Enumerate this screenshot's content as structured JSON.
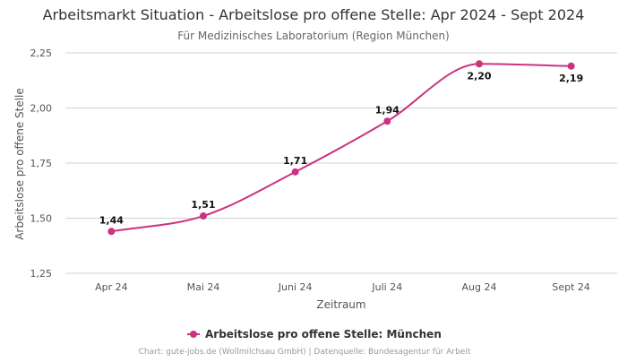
{
  "chart_data": {
    "type": "line",
    "title": "Arbeitsmarkt Situation - Arbeitslose pro offene Stelle: Apr 2024 - Sept 2024",
    "subtitle": "Für Medizinisches Laboratorium (Region München)",
    "xlabel": "Zeitraum",
    "ylabel": "Arbeitslose pro offene Stelle",
    "categories": [
      "Apr 24",
      "Mai 24",
      "Juni 24",
      "Juli 24",
      "Aug 24",
      "Sept 24"
    ],
    "series": [
      {
        "name": "Arbeitslose pro offene Stelle: München",
        "values": [
          1.44,
          1.51,
          1.71,
          1.94,
          2.2,
          2.19
        ],
        "labels": [
          "1,44",
          "1,51",
          "1,71",
          "1,94",
          "2,20",
          "2,19"
        ],
        "color": "#cc3380"
      }
    ],
    "ylim": [
      1.25,
      2.25
    ],
    "yticks": [
      1.25,
      1.5,
      1.75,
      2.0,
      2.25
    ],
    "ytick_labels": [
      "1,25",
      "1,50",
      "1,75",
      "2,00",
      "2,25"
    ],
    "grid": "horizontal",
    "legend_position": "bottom"
  },
  "footer": {
    "credit": "Chart: gute-jobs.de (Wollmilchsau GmbH) | Datenquelle: Bundesagentur für Arbeit"
  },
  "colors": {
    "series": "#cc3380",
    "grid": "#d0d0d0",
    "title": "#333333",
    "subtitle": "#666666",
    "axis_text": "#555555",
    "footer": "#999999"
  }
}
